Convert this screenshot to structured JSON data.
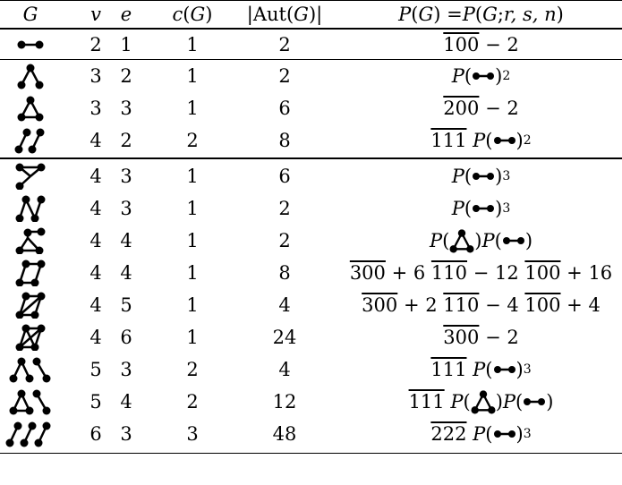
{
  "header": {
    "g": "G",
    "v": "v",
    "e": "e",
    "c": "c(G)",
    "aut": "|Aut(G)|",
    "p": "P(G) = P(G; r, s, n)"
  },
  "rows": [
    {
      "graph": "edge",
      "v": "2",
      "e": "1",
      "c": "1",
      "aut": "2",
      "p_text": "100 − 2"
    },
    {
      "graph": "path3",
      "v": "3",
      "e": "2",
      "c": "1",
      "aut": "2",
      "p_text": "P(edge)^2"
    },
    {
      "graph": "triangle",
      "v": "3",
      "e": "3",
      "c": "1",
      "aut": "6",
      "p_text": "200 − 2"
    },
    {
      "graph": "two-edges",
      "v": "4",
      "e": "2",
      "c": "2",
      "aut": "8",
      "p_text": "111 P(edge)^2"
    },
    {
      "graph": "star4",
      "v": "4",
      "e": "3",
      "c": "1",
      "aut": "6",
      "p_text": "P(edge)^3"
    },
    {
      "graph": "path4",
      "v": "4",
      "e": "3",
      "c": "1",
      "aut": "2",
      "p_text": "P(edge)^3"
    },
    {
      "graph": "paw",
      "v": "4",
      "e": "4",
      "c": "1",
      "aut": "2",
      "p_text": "P(triangle)P(edge)"
    },
    {
      "graph": "square",
      "v": "4",
      "e": "4",
      "c": "1",
      "aut": "8",
      "p_text": "300 + 6 110 − 12 100 + 16"
    },
    {
      "graph": "diamond",
      "v": "4",
      "e": "5",
      "c": "1",
      "aut": "4",
      "p_text": "300 + 2 110 − 4 100 + 4"
    },
    {
      "graph": "k4",
      "v": "4",
      "e": "6",
      "c": "1",
      "aut": "24",
      "p_text": "300 − 2"
    },
    {
      "graph": "path3-edge",
      "v": "5",
      "e": "3",
      "c": "2",
      "aut": "4",
      "p_text": "111 P(edge)^3"
    },
    {
      "graph": "triangle-edge",
      "v": "5",
      "e": "4",
      "c": "2",
      "aut": "12",
      "p_text": "111 P(triangle)P(edge)"
    },
    {
      "graph": "three-edges",
      "v": "6",
      "e": "3",
      "c": "3",
      "aut": "48",
      "p_text": "222 P(edge)^3"
    }
  ],
  "symbols": {
    "ov100": "100",
    "ov200": "200",
    "ov111": "111",
    "ov300": "300",
    "ov110": "110",
    "ov222": "222",
    "minus2": "− 2",
    "plus6": "+ 6",
    "minus12": "− 12",
    "plus16": "+ 16",
    "plus2": "+ 2",
    "minus4": "− 4",
    "plus4": "+ 4",
    "P": "P",
    "lp": "(",
    "rp": ")",
    "sq": "2",
    "cube": "3"
  }
}
